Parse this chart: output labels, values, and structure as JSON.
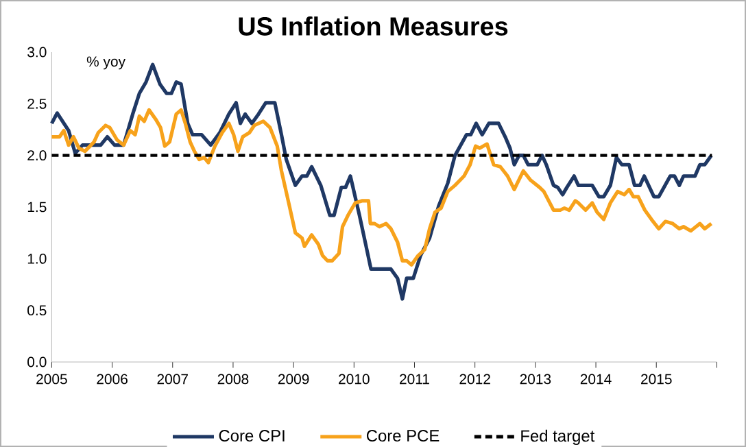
{
  "chart_data": {
    "type": "line",
    "title": "US Inflation Measures",
    "ylabel": "% yoy",
    "xlim": [
      2005,
      2016
    ],
    "ylim": [
      0,
      3
    ],
    "xticks": [
      2005,
      2006,
      2007,
      2008,
      2009,
      2010,
      2011,
      2012,
      2013,
      2014,
      2015,
      {
        "value": 2016,
        "label": null
      }
    ],
    "yticks": [
      {
        "value": 0,
        "label": "0.0"
      },
      {
        "value": 0.5,
        "label": "0.5"
      },
      {
        "value": 1,
        "label": "1.0"
      },
      {
        "value": 1.5,
        "label": "1.5"
      },
      {
        "value": 2,
        "label": "2.0"
      },
      {
        "value": 2.5,
        "label": "2.5"
      },
      {
        "value": 3,
        "label": "3.0"
      }
    ],
    "grid": false,
    "legend": "bottom",
    "series": [
      {
        "name": "Core CPI",
        "color": "#1f3864",
        "line_style": "solid",
        "x": [
          2005.0,
          2005.09,
          2005.28,
          2005.39,
          2005.51,
          2005.66,
          2005.81,
          2005.92,
          2006.04,
          2006.19,
          2006.34,
          2006.45,
          2006.56,
          2006.67,
          2006.79,
          2006.9,
          2006.98,
          2007.06,
          2007.14,
          2007.25,
          2007.33,
          2007.48,
          2007.63,
          2007.78,
          2007.93,
          2008.05,
          2008.12,
          2008.2,
          2008.31,
          2008.42,
          2008.54,
          2008.69,
          2008.8,
          2008.88,
          2009.03,
          2009.14,
          2009.22,
          2009.3,
          2009.45,
          2009.6,
          2009.67,
          2009.79,
          2009.86,
          2009.94,
          2010.09,
          2010.2,
          2010.28,
          2010.61,
          2010.72,
          2010.8,
          2010.87,
          2010.98,
          2011.1,
          2011.25,
          2011.4,
          2011.55,
          2011.67,
          2011.86,
          2011.93,
          2012.02,
          2012.12,
          2012.23,
          2012.39,
          2012.5,
          2012.58,
          2012.65,
          2012.73,
          2012.8,
          2012.88,
          2013.03,
          2013.11,
          2013.18,
          2013.3,
          2013.37,
          2013.45,
          2013.52,
          2013.64,
          2013.71,
          2013.94,
          2014.05,
          2014.13,
          2014.24,
          2014.34,
          2014.43,
          2014.55,
          2014.64,
          2014.73,
          2014.8,
          2014.96,
          2015.04,
          2015.23,
          2015.3,
          2015.38,
          2015.45,
          2015.64,
          2015.72,
          2015.8,
          2015.91
        ],
        "values": [
          2.31,
          2.41,
          2.24,
          2.02,
          2.1,
          2.1,
          2.1,
          2.18,
          2.1,
          2.1,
          2.4,
          2.6,
          2.71,
          2.88,
          2.69,
          2.6,
          2.6,
          2.71,
          2.69,
          2.31,
          2.2,
          2.2,
          2.1,
          2.22,
          2.4,
          2.51,
          2.31,
          2.4,
          2.31,
          2.4,
          2.51,
          2.51,
          2.2,
          1.96,
          1.71,
          1.8,
          1.8,
          1.89,
          1.71,
          1.42,
          1.42,
          1.69,
          1.69,
          1.8,
          1.42,
          1.12,
          0.9,
          0.9,
          0.81,
          0.61,
          0.81,
          0.81,
          1.03,
          1.2,
          1.51,
          1.73,
          2.0,
          2.2,
          2.2,
          2.31,
          2.2,
          2.31,
          2.31,
          2.18,
          2.07,
          1.91,
          2.0,
          2.0,
          1.91,
          1.91,
          2.0,
          1.91,
          1.71,
          1.69,
          1.62,
          1.69,
          1.8,
          1.71,
          1.71,
          1.6,
          1.6,
          1.71,
          1.98,
          1.91,
          1.91,
          1.71,
          1.71,
          1.8,
          1.6,
          1.6,
          1.8,
          1.8,
          1.71,
          1.8,
          1.8,
          1.91,
          1.91,
          2.0
        ]
      },
      {
        "name": "Core PCE",
        "color": "#f7a21b",
        "line_style": "solid",
        "x": [
          2005.0,
          2005.13,
          2005.2,
          2005.28,
          2005.36,
          2005.45,
          2005.55,
          2005.7,
          2005.77,
          2005.89,
          2005.96,
          2006.08,
          2006.19,
          2006.3,
          2006.38,
          2006.45,
          2006.53,
          2006.61,
          2006.72,
          2006.8,
          2006.87,
          2006.95,
          2007.06,
          2007.14,
          2007.21,
          2007.29,
          2007.36,
          2007.44,
          2007.52,
          2007.59,
          2007.7,
          2007.82,
          2007.93,
          2008.01,
          2008.08,
          2008.16,
          2008.27,
          2008.35,
          2008.5,
          2008.61,
          2008.73,
          2008.8,
          2008.92,
          2009.03,
          2009.14,
          2009.18,
          2009.3,
          2009.41,
          2009.48,
          2009.56,
          2009.64,
          2009.75,
          2009.81,
          2009.9,
          2010.02,
          2010.13,
          2010.24,
          2010.27,
          2010.34,
          2010.42,
          2010.53,
          2010.61,
          2010.72,
          2010.8,
          2010.87,
          2010.95,
          2011.06,
          2011.17,
          2011.25,
          2011.34,
          2011.44,
          2011.55,
          2011.67,
          2011.82,
          2011.92,
          2012.01,
          2012.08,
          2012.2,
          2012.31,
          2012.42,
          2012.54,
          2012.65,
          2012.8,
          2012.92,
          2013.07,
          2013.14,
          2013.3,
          2013.41,
          2013.48,
          2013.56,
          2013.66,
          2013.71,
          2013.83,
          2013.94,
          2014.02,
          2014.13,
          2014.24,
          2014.36,
          2014.47,
          2014.55,
          2014.62,
          2014.7,
          2014.81,
          2014.92,
          2015.04,
          2015.15,
          2015.27,
          2015.38,
          2015.45,
          2015.57,
          2015.72,
          2015.8,
          2015.91
        ],
        "values": [
          2.18,
          2.18,
          2.24,
          2.1,
          2.18,
          2.07,
          2.04,
          2.13,
          2.22,
          2.29,
          2.27,
          2.15,
          2.1,
          2.24,
          2.2,
          2.38,
          2.33,
          2.44,
          2.35,
          2.27,
          2.09,
          2.13,
          2.4,
          2.44,
          2.31,
          2.13,
          2.04,
          1.96,
          1.98,
          1.93,
          2.09,
          2.22,
          2.31,
          2.2,
          2.04,
          2.18,
          2.22,
          2.29,
          2.33,
          2.27,
          2.09,
          1.85,
          1.54,
          1.25,
          1.2,
          1.12,
          1.23,
          1.14,
          1.03,
          0.98,
          0.98,
          1.05,
          1.31,
          1.42,
          1.54,
          1.56,
          1.56,
          1.34,
          1.34,
          1.31,
          1.34,
          1.29,
          1.16,
          0.98,
          0.98,
          0.94,
          1.03,
          1.09,
          1.29,
          1.45,
          1.49,
          1.65,
          1.71,
          1.8,
          1.91,
          2.09,
          2.07,
          2.11,
          1.91,
          1.89,
          1.8,
          1.67,
          1.85,
          1.76,
          1.69,
          1.65,
          1.47,
          1.47,
          1.49,
          1.47,
          1.56,
          1.54,
          1.47,
          1.54,
          1.45,
          1.38,
          1.54,
          1.65,
          1.62,
          1.67,
          1.6,
          1.6,
          1.47,
          1.38,
          1.29,
          1.36,
          1.34,
          1.29,
          1.31,
          1.27,
          1.34,
          1.29,
          1.34
        ]
      },
      {
        "name": "Fed target",
        "color": "#000000",
        "line_style": "dashed",
        "x": [
          2005.0,
          2015.92
        ],
        "values": [
          2.0,
          2.0
        ]
      }
    ]
  }
}
